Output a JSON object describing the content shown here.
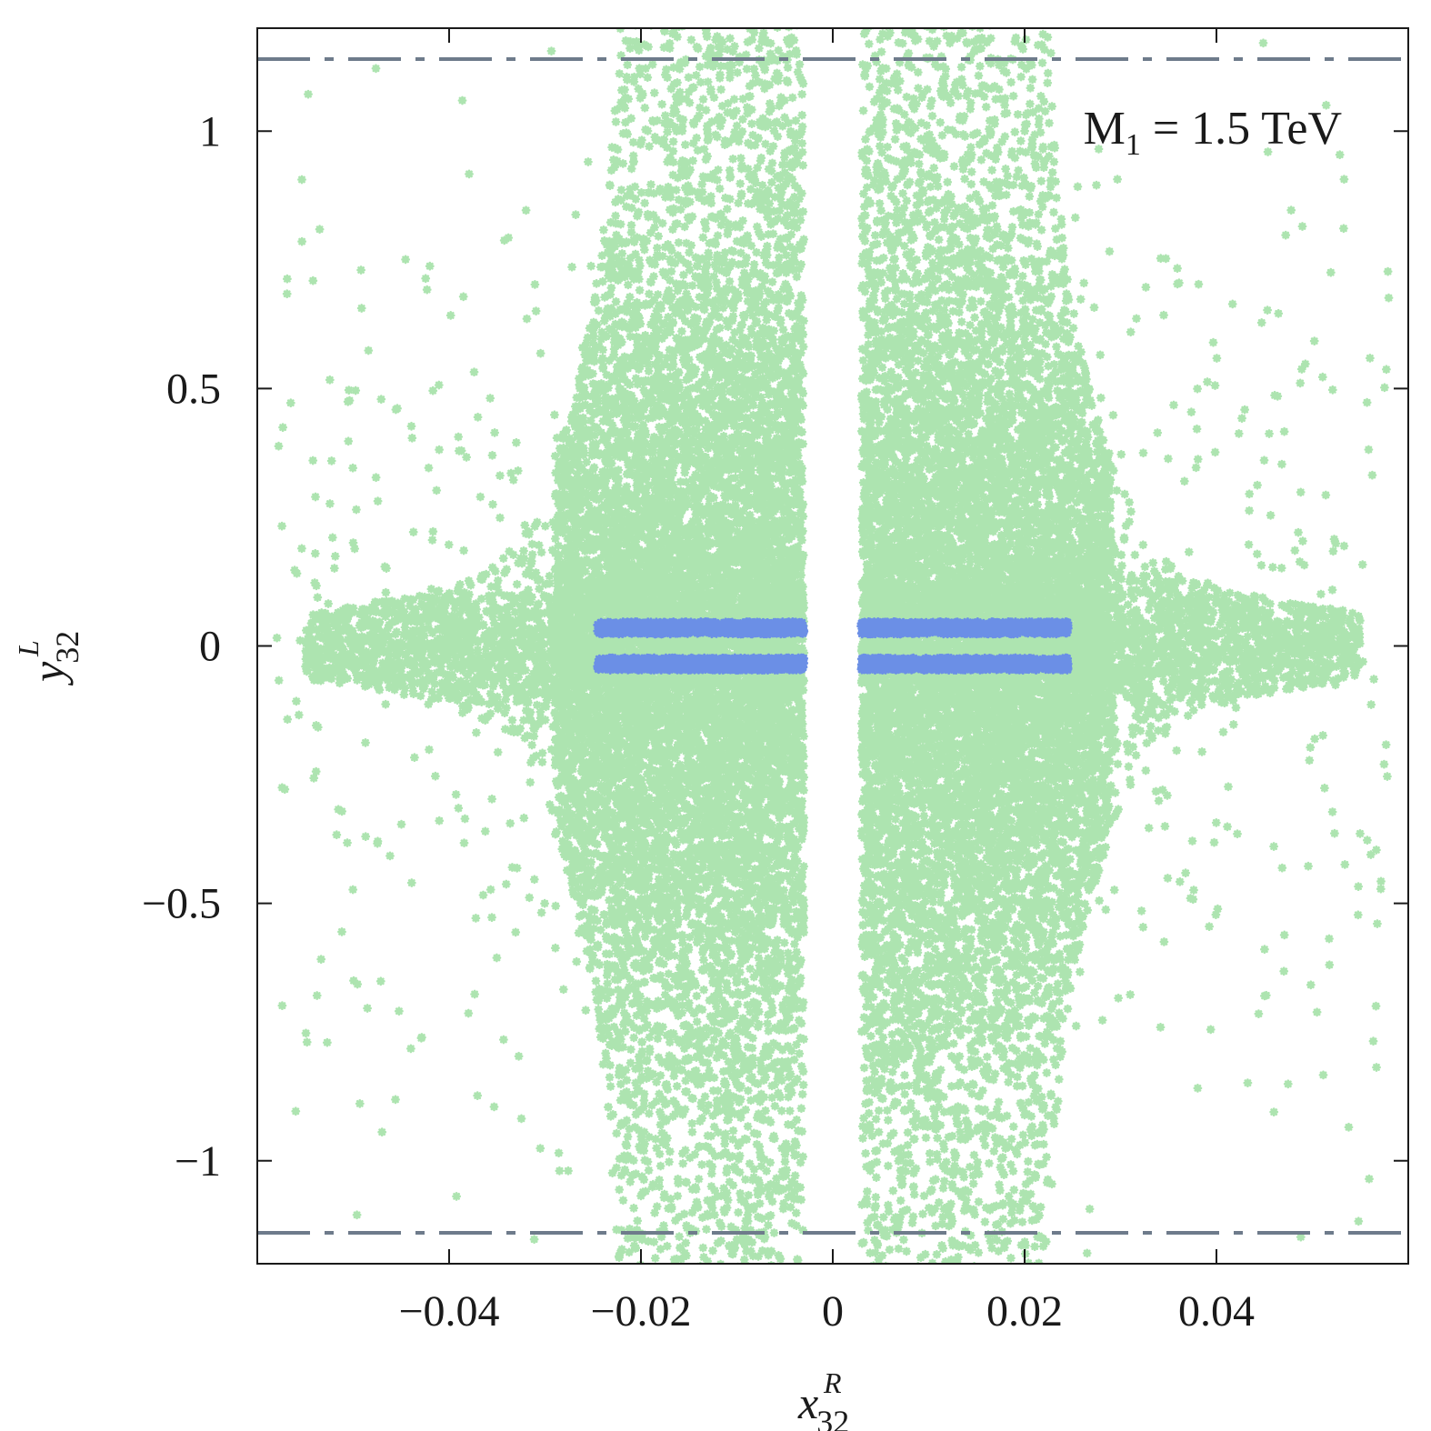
{
  "chart_data": {
    "type": "scatter",
    "title": "",
    "xlabel": {
      "base": "x",
      "sub": "32",
      "sup": "R"
    },
    "ylabel": {
      "base": "y",
      "sub": "32",
      "sup": "L"
    },
    "xlim": [
      -0.06,
      0.06
    ],
    "ylim": [
      -1.2,
      1.2
    ],
    "x_ticks": [
      -0.04,
      -0.02,
      0,
      0.02,
      0.04
    ],
    "x_tick_labels": [
      "−0.04",
      "−0.02",
      "0",
      "0.02",
      "0.04"
    ],
    "y_ticks": [
      -1,
      -0.5,
      0,
      0.5,
      1
    ],
    "y_tick_labels": [
      "−1",
      "−0.5",
      "0",
      "0.5",
      "1"
    ],
    "grid": false,
    "annotation": {
      "main": "M",
      "sub": "1",
      "rest": " = 1.5 TeV"
    },
    "reference_lines": [
      {
        "axis": "y",
        "value": 1.14,
        "style": "dash-dot",
        "color": "#6e7b8b"
      },
      {
        "axis": "y",
        "value": -1.14,
        "style": "dash-dot",
        "color": "#6e7b8b"
      }
    ],
    "series": [
      {
        "color": "#ade4b0",
        "marker": "star",
        "regions": [
          {
            "x_range": [
              -0.055,
              -0.003
            ],
            "y_range": [
              -1.2,
              1.2
            ],
            "shape": "fan",
            "density": "dense-core"
          },
          {
            "x_range": [
              0.003,
              0.055
            ],
            "y_range": [
              -1.2,
              1.2
            ],
            "shape": "fan",
            "density": "dense-core"
          }
        ]
      },
      {
        "color": "#6b8fe6",
        "marker": "star",
        "bands": [
          {
            "x_range": [
              -0.0245,
              -0.003
            ],
            "y": 0.035
          },
          {
            "x_range": [
              -0.0245,
              -0.003
            ],
            "y": -0.035
          },
          {
            "x_range": [
              0.003,
              0.0245
            ],
            "y": 0.035
          },
          {
            "x_range": [
              0.003,
              0.0245
            ],
            "y": -0.035
          }
        ]
      }
    ]
  }
}
